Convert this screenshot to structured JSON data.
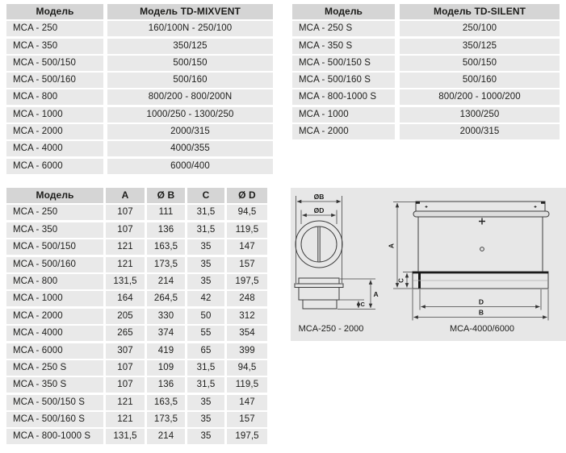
{
  "tables": {
    "mixvent": {
      "headers": [
        "Модель",
        "Модель TD-MIXVENT"
      ],
      "rows": [
        [
          "MCA - 250",
          "160/100N - 250/100"
        ],
        [
          "MCA - 350",
          "350/125"
        ],
        [
          "MCA - 500/150",
          "500/150"
        ],
        [
          "MCA - 500/160",
          "500/160"
        ],
        [
          "MCA - 800",
          "800/200 - 800/200N"
        ],
        [
          "MCA - 1000",
          "1000/250 - 1300/250"
        ],
        [
          "MCA - 2000",
          "2000/315"
        ],
        [
          "MCA - 4000",
          "4000/355"
        ],
        [
          "MCA - 6000",
          "6000/400"
        ]
      ]
    },
    "silent": {
      "headers": [
        "Модель",
        "Модель TD-SILENT"
      ],
      "rows": [
        [
          "MCA - 250 S",
          "250/100"
        ],
        [
          "MCA - 350 S",
          "350/125"
        ],
        [
          "MCA - 500/150 S",
          "500/150"
        ],
        [
          "MCA - 500/160 S",
          "500/160"
        ],
        [
          "MCA - 800-1000 S",
          "800/200 - 1000/200"
        ],
        [
          "MCA - 1000",
          "1300/250"
        ],
        [
          "MCA - 2000",
          "2000/315"
        ]
      ]
    },
    "dimensions": {
      "headers": [
        "Модель",
        "A",
        "Ø B",
        "C",
        "Ø D"
      ],
      "rows": [
        [
          "MCA - 250",
          "107",
          "111",
          "31,5",
          "94,5"
        ],
        [
          "MCA - 350",
          "107",
          "136",
          "31,5",
          "119,5"
        ],
        [
          "MCA - 500/150",
          "121",
          "163,5",
          "35",
          "147"
        ],
        [
          "MCA - 500/160",
          "121",
          "173,5",
          "35",
          "157"
        ],
        [
          "MCA - 800",
          "131,5",
          "214",
          "35",
          "197,5"
        ],
        [
          "MCA - 1000",
          "164",
          "264,5",
          "42",
          "248"
        ],
        [
          "MCA - 2000",
          "205",
          "330",
          "50",
          "312"
        ],
        [
          "MCA - 4000",
          "265",
          "374",
          "55",
          "354"
        ],
        [
          "MCA - 6000",
          "307",
          "419",
          "65",
          "399"
        ],
        [
          "MCA - 250 S",
          "107",
          "109",
          "31,5",
          "94,5"
        ],
        [
          "MCA - 350 S",
          "107",
          "136",
          "31,5",
          "119,5"
        ],
        [
          "MCA - 500/150 S",
          "121",
          "163,5",
          "35",
          "147"
        ],
        [
          "MCA - 500/160 S",
          "121",
          "173,5",
          "35",
          "157"
        ],
        [
          "MCA - 800-1000 S",
          "131,5",
          "214",
          "35",
          "197,5"
        ]
      ]
    }
  },
  "diagram": {
    "left": {
      "dim_ob": "ØB",
      "dim_od": "ØD",
      "dim_a": "A",
      "dim_c": "C",
      "caption": "MCA-250 - 2000"
    },
    "right": {
      "dim_a": "A",
      "dim_c": "C",
      "dim_d": "D",
      "dim_b": "B",
      "caption": "MCA-4000/6000"
    }
  },
  "colors": {
    "header_bg": "#d5d5d5",
    "row_bg": "#e9e9e9",
    "panel_bg": "#e7e7e7",
    "text": "#1d1d1b",
    "line": "#3d3d3d"
  }
}
